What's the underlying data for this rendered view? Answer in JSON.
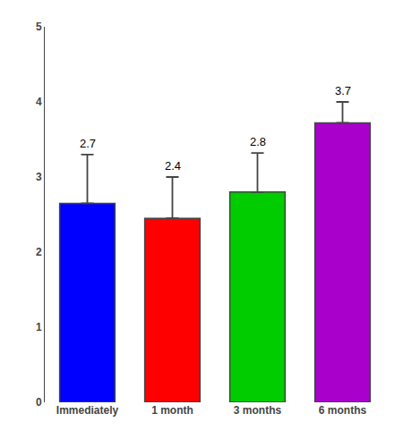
{
  "chart_data": {
    "type": "bar",
    "categories": [
      "Immediately",
      "1 month",
      "3 months",
      "6 months"
    ],
    "values": [
      2.65,
      2.45,
      2.8,
      3.72
    ],
    "value_labels": [
      "2.7",
      "2.4",
      "2.8",
      "3.7"
    ],
    "errors_up": [
      0.65,
      0.55,
      0.52,
      0.28
    ],
    "colors": [
      "#0000FF",
      "#FF0000",
      "#00CC00",
      "#AA00CC"
    ],
    "ylim": [
      0,
      5
    ],
    "yticks": [
      0,
      1,
      2,
      3,
      4,
      5
    ],
    "grid": false,
    "data_labels": true
  }
}
